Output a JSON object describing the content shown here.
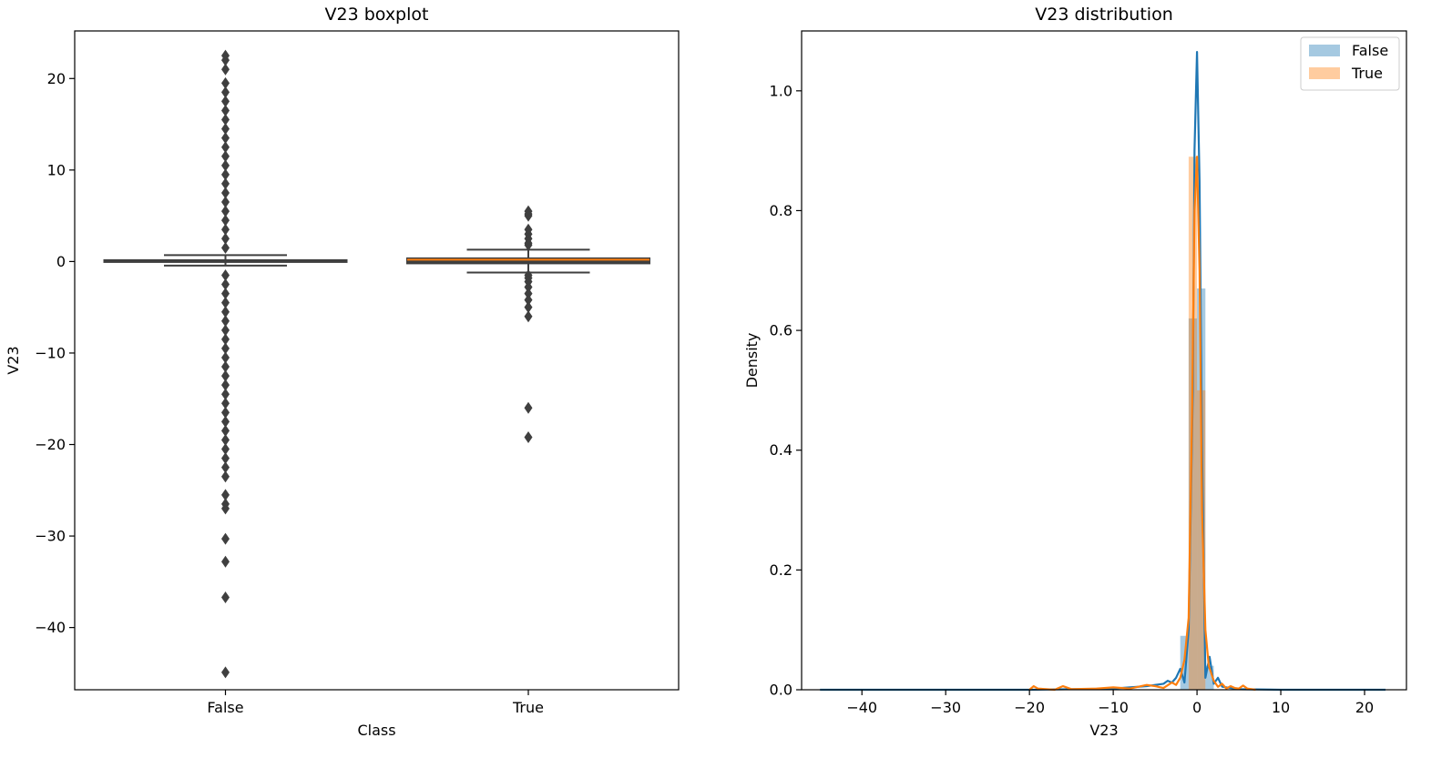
{
  "chart_data": [
    {
      "type": "boxplot",
      "title": "V23 boxplot",
      "xlabel": "Class",
      "ylabel": "V23",
      "categories": [
        "False",
        "True"
      ],
      "ylim": [
        -46.8,
        25.2
      ],
      "yticks": [
        20,
        10,
        0,
        -10,
        -20,
        -30,
        -40
      ],
      "ytick_labels": [
        "20",
        "10",
        "0",
        "−10",
        "−20",
        "−30",
        "−40"
      ],
      "box_color": "#3f3f3f",
      "median_colors": [
        "#3f3f3f",
        "#ff7f0e"
      ],
      "boxes": [
        {
          "category": "False",
          "q1": -0.05,
          "median": 0.0,
          "q3": 0.15,
          "whisker_low": -0.45,
          "whisker_high": 0.7,
          "outliers": [
            22.5,
            22.0,
            21.0,
            19.5,
            18.5,
            17.5,
            16.5,
            15.5,
            14.5,
            13.5,
            12.5,
            11.5,
            10.5,
            9.5,
            8.5,
            7.5,
            6.5,
            5.5,
            4.5,
            3.5,
            2.5,
            1.5,
            -1.5,
            -2.5,
            -3.5,
            -4.5,
            -5.5,
            -6.5,
            -7.5,
            -8.5,
            -9.5,
            -10.5,
            -11.5,
            -12.5,
            -13.5,
            -14.5,
            -15.5,
            -16.5,
            -17.5,
            -18.5,
            -19.5,
            -20.5,
            -21.5,
            -22.5,
            -23.5,
            -25.5,
            -26.5,
            -27.0,
            -30.3,
            -32.8,
            -36.7,
            -44.9
          ]
        },
        {
          "category": "True",
          "q1": -0.2,
          "median": 0.2,
          "q3": 0.35,
          "whisker_low": -1.2,
          "whisker_high": 1.3,
          "outliers": [
            5.5,
            5.2,
            5.0,
            3.5,
            3.0,
            2.5,
            2.0,
            1.8,
            -1.5,
            -1.8,
            -2.2,
            -2.8,
            -3.5,
            -4.2,
            -5.0,
            -6.0,
            -16.0,
            -19.2
          ]
        }
      ]
    },
    {
      "type": "area",
      "title": "V23 distribution",
      "xlabel": "V23",
      "ylabel": "Density",
      "xlim": [
        -47.2,
        25.0
      ],
      "ylim": [
        0,
        1.1
      ],
      "xticks": [
        -40,
        -30,
        -20,
        -10,
        0,
        10,
        20
      ],
      "xtick_labels": [
        "−40",
        "−30",
        "−20",
        "−10",
        "0",
        "10",
        "20"
      ],
      "yticks": [
        0.0,
        0.2,
        0.4,
        0.6,
        0.8,
        1.0
      ],
      "ytick_labels": [
        "0.0",
        "0.2",
        "0.4",
        "0.6",
        "0.8",
        "1.0"
      ],
      "legend": {
        "position": "top-right",
        "entries": [
          "False",
          "True"
        ]
      },
      "series": [
        {
          "name": "False",
          "color": "#1f77b4",
          "hist_bins": [
            {
              "x0": -2.0,
              "x1": -1.0,
              "h": 0.09
            },
            {
              "x0": -1.0,
              "x1": 0.0,
              "h": 0.62
            },
            {
              "x0": 0.0,
              "x1": 1.0,
              "h": 0.67
            },
            {
              "x0": 1.0,
              "x1": 2.0,
              "h": 0.04
            }
          ],
          "kde": {
            "x": [
              -45,
              -20,
              -10,
              -8,
              -6,
              -5,
              -4,
              -3.5,
              -3,
              -2.5,
              -2,
              -1.5,
              -1,
              -0.5,
              -0.3,
              0,
              0.3,
              0.6,
              1,
              1.5,
              2,
              2.5,
              3,
              4,
              5,
              10,
              22.5
            ],
            "y": [
              0.0,
              0.0,
              0.002,
              0.004,
              0.006,
              0.008,
              0.01,
              0.015,
              0.012,
              0.02,
              0.035,
              0.012,
              0.1,
              0.5,
              0.9,
              1.065,
              0.85,
              0.4,
              0.02,
              0.055,
              0.01,
              0.02,
              0.005,
              0.003,
              0.001,
              0.0,
              0.0
            ]
          }
        },
        {
          "name": "True",
          "color": "#ff7f0e",
          "hist_bins": [
            {
              "x0": -1.0,
              "x1": 0.0,
              "h": 0.89
            },
            {
              "x0": 0.0,
              "x1": 1.0,
              "h": 0.5
            }
          ],
          "kde": {
            "x": [
              -20,
              -19.5,
              -19,
              -17,
              -16,
              -15,
              -12,
              -10,
              -8,
              -6,
              -5,
              -4,
              -3,
              -2.5,
              -2,
              -1.5,
              -1,
              -0.6,
              -0.3,
              0,
              0.3,
              0.6,
              1,
              1.4,
              2,
              2.5,
              3,
              3.5,
              4,
              4.5,
              5,
              5.5,
              6,
              7
            ],
            "y": [
              0.0,
              0.006,
              0.002,
              0.0,
              0.006,
              0.001,
              0.002,
              0.004,
              0.002,
              0.008,
              0.006,
              0.003,
              0.012,
              0.008,
              0.02,
              0.05,
              0.12,
              0.45,
              0.8,
              0.89,
              0.7,
              0.3,
              0.1,
              0.04,
              0.015,
              0.005,
              0.01,
              0.002,
              0.006,
              0.003,
              0.002,
              0.007,
              0.002,
              0.0
            ]
          }
        }
      ]
    }
  ]
}
